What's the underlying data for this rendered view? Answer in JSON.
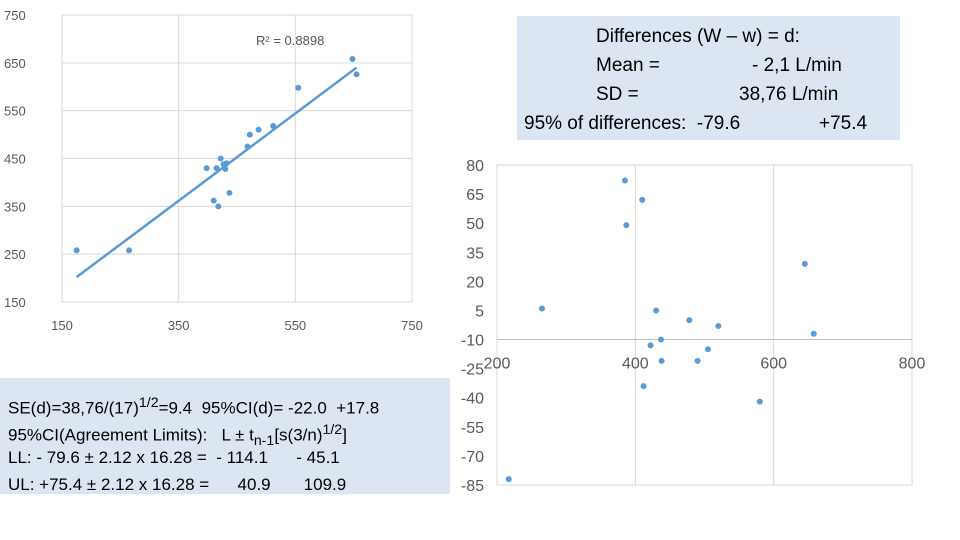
{
  "chart_data": [
    {
      "type": "scatter",
      "title": "",
      "xlabel": "",
      "ylabel": "",
      "xlim": [
        150,
        750
      ],
      "ylim": [
        150,
        750
      ],
      "x_ticks": [
        150,
        350,
        550,
        750
      ],
      "y_ticks": [
        150,
        250,
        350,
        450,
        550,
        650,
        750
      ],
      "grid": true,
      "annotation": "R² = 0.8898",
      "trendline": {
        "type": "linear",
        "from": [
          175,
          202
        ],
        "to": [
          655,
          640
        ]
      },
      "points": [
        {
          "x": 175,
          "y": 258
        },
        {
          "x": 265,
          "y": 258
        },
        {
          "x": 398,
          "y": 430
        },
        {
          "x": 410,
          "y": 362
        },
        {
          "x": 415,
          "y": 430
        },
        {
          "x": 418,
          "y": 350
        },
        {
          "x": 422,
          "y": 450
        },
        {
          "x": 427,
          "y": 438
        },
        {
          "x": 430,
          "y": 428
        },
        {
          "x": 432,
          "y": 440
        },
        {
          "x": 437,
          "y": 378
        },
        {
          "x": 468,
          "y": 475
        },
        {
          "x": 472,
          "y": 500
        },
        {
          "x": 487,
          "y": 510
        },
        {
          "x": 512,
          "y": 518
        },
        {
          "x": 555,
          "y": 598
        },
        {
          "x": 648,
          "y": 658
        },
        {
          "x": 655,
          "y": 626
        }
      ]
    },
    {
      "type": "scatter",
      "title": "",
      "xlabel": "",
      "ylabel": "",
      "xlim": [
        200,
        800
      ],
      "ylim": [
        -85,
        80
      ],
      "x_ticks": [
        200,
        400,
        600,
        800
      ],
      "y_ticks": [
        80,
        65,
        50,
        35,
        20,
        5,
        -10,
        -25,
        -40,
        -55,
        -70,
        -85
      ],
      "grid": true,
      "points": [
        {
          "x": 217,
          "y": -82
        },
        {
          "x": 265,
          "y": 6
        },
        {
          "x": 385,
          "y": 72
        },
        {
          "x": 387,
          "y": 49
        },
        {
          "x": 410,
          "y": 62
        },
        {
          "x": 412,
          "y": -34
        },
        {
          "x": 422,
          "y": -13
        },
        {
          "x": 430,
          "y": 5
        },
        {
          "x": 437,
          "y": -10
        },
        {
          "x": 438,
          "y": -21
        },
        {
          "x": 478,
          "y": 0
        },
        {
          "x": 490,
          "y": -21
        },
        {
          "x": 505,
          "y": -15
        },
        {
          "x": 520,
          "y": -3
        },
        {
          "x": 580,
          "y": -42
        },
        {
          "x": 645,
          "y": 29
        },
        {
          "x": 658,
          "y": -7
        }
      ]
    }
  ],
  "diff_box": {
    "line1": "Differences (W – w) = d:",
    "line2a": "Mean =",
    "line2b": "- 2,1 L/min",
    "line3a": "SD =",
    "line3b": "38,76 L/min",
    "line4a": "95% of differences:  -79.6",
    "line4b": "+75.4"
  },
  "se_box": {
    "line1": "SE(d)=38,76/(17)1/2=9.4  95%CI(d)= -22.0  +17.8",
    "line2": "95%CI(Agreement Limits):   L ± tn-1[s(3/n)1/2]",
    "line3": "LL: - 79.6 ± 2.12 x 16.28 =  - 114.1      - 45.1",
    "line4": "UL: +75.4 ± 2.12 x 16.28 =      40.9       109.9"
  },
  "colors": {
    "marker": "#5b9bd5",
    "trendline": "#5b9bd5",
    "gridline": "#d9d9d9",
    "box": "#dce6f2"
  }
}
